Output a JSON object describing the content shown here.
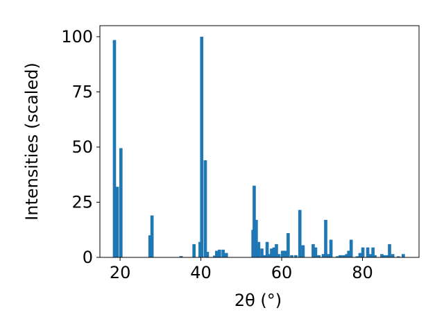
{
  "chart_data": {
    "type": "bar",
    "xlabel": "2θ (°)",
    "ylabel": "Intensities (scaled)",
    "xlim": [
      15,
      94
    ],
    "ylim": [
      0,
      105
    ],
    "xticks": [
      20,
      40,
      60,
      80
    ],
    "yticks": [
      0,
      25,
      50,
      75,
      100
    ],
    "bar_color": "#1f77b4",
    "grid": false,
    "bar_width": 0.8,
    "x": [
      18.6,
      19.3,
      20.2,
      27.4,
      27.9,
      35.1,
      38.3,
      39.8,
      40.2,
      41.1,
      41.6,
      43.4,
      43.9,
      44.6,
      45.5,
      46.3,
      52.9,
      53.2,
      53.7,
      54.3,
      55.1,
      55.8,
      56.4,
      57.0,
      57.5,
      58.1,
      58.7,
      59.3,
      60.2,
      60.8,
      61.6,
      62.5,
      63.5,
      64.5,
      65.3,
      67.8,
      68.4,
      69.2,
      70.3,
      70.9,
      71.6,
      72.2,
      73.8,
      74.5,
      75.3,
      76.1,
      76.6,
      77.2,
      78.7,
      79.4,
      80.1,
      81.3,
      81.9,
      82.6,
      83.1,
      84.8,
      85.5,
      86.3,
      86.7,
      87.5,
      88.9,
      90.1
    ],
    "values": [
      98.5,
      32.0,
      49.5,
      10.0,
      19.0,
      0.6,
      6.0,
      7.0,
      100.0,
      44.0,
      2.5,
      0.8,
      3.0,
      3.5,
      3.5,
      2.0,
      12.5,
      32.5,
      17.0,
      7.0,
      4.0,
      1.0,
      7.0,
      1.5,
      4.0,
      4.5,
      6.0,
      1.5,
      3.0,
      3.0,
      11.0,
      1.0,
      1.0,
      21.5,
      5.5,
      6.0,
      4.5,
      1.0,
      1.5,
      17.0,
      1.5,
      8.0,
      0.5,
      1.0,
      1.0,
      1.5,
      3.0,
      8.0,
      0.5,
      2.0,
      4.5,
      4.5,
      1.5,
      4.5,
      1.0,
      1.5,
      1.0,
      1.0,
      6.0,
      1.5,
      0.5,
      1.5
    ]
  }
}
